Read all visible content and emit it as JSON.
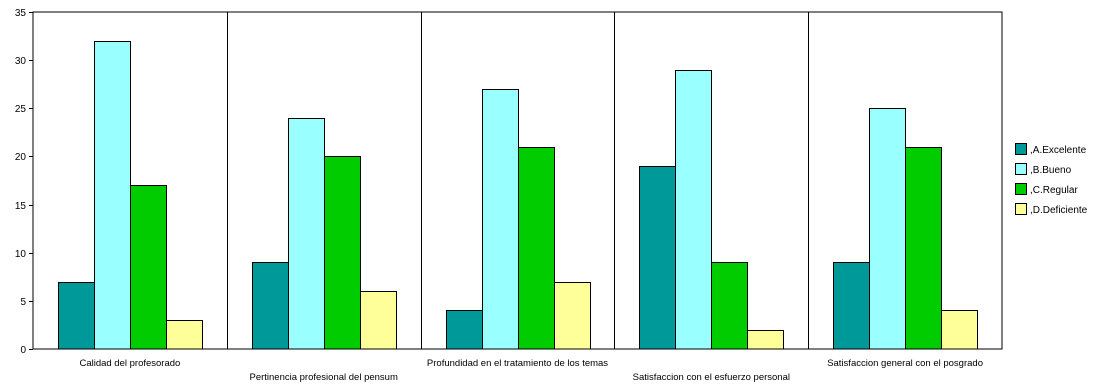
{
  "chart_data": {
    "type": "bar",
    "categories": [
      "Calidad del profesorado",
      "Pertinencia profesional del pensum",
      "Profundidad en el tratamiento de los temas",
      "Satisfaccion con el esfuerzo personal",
      "Satisfaccion general con el posgrado"
    ],
    "series": [
      {
        "name": ",A.Excelente",
        "color": "#009999",
        "values": [
          7,
          9,
          4,
          19,
          9
        ]
      },
      {
        "name": ",B.Bueno",
        "color": "#99ffff",
        "values": [
          32,
          24,
          27,
          29,
          25
        ]
      },
      {
        "name": ",C.Regular",
        "color": "#00cc00",
        "values": [
          17,
          20,
          21,
          9,
          21
        ]
      },
      {
        "name": ",D.Deficiente",
        "color": "#ffff99",
        "values": [
          3,
          6,
          7,
          2,
          4
        ]
      }
    ],
    "ylim": [
      0,
      35
    ],
    "yticks": [
      "0",
      "5",
      "10",
      "15",
      "20",
      "25",
      "30",
      "35"
    ],
    "grid": "vertical separators between categories",
    "legend_position": "right"
  }
}
